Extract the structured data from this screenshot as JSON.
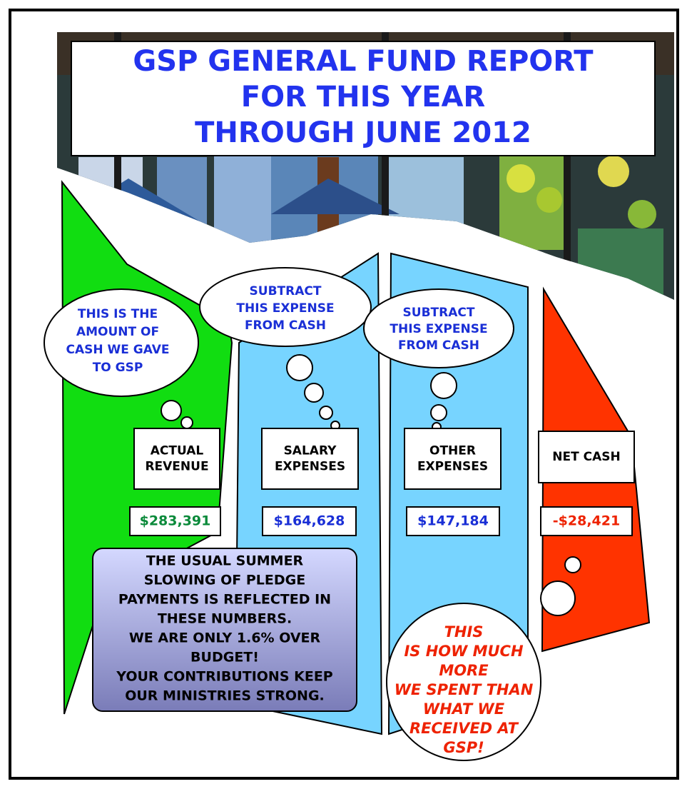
{
  "title": [
    "GSP GENERAL FUND REPORT",
    "FOR THIS YEAR",
    "THROUGH JUNE 2012"
  ],
  "panels": [
    {
      "label": [
        "ACTUAL",
        "REVENUE"
      ],
      "amount": "$283,391",
      "color": "#0a8a3a"
    },
    {
      "label": [
        "SALARY",
        "EXPENSES"
      ],
      "amount": "$164,628",
      "color": "#1a2fd6"
    },
    {
      "label": [
        "OTHER",
        "EXPENSES"
      ],
      "amount": "$147,184",
      "color": "#1a2fd6"
    },
    {
      "label": [
        "NET CASH"
      ],
      "amount": "-$28,421",
      "color": "#ee2200"
    }
  ],
  "bubbles": {
    "revenue": [
      "THIS IS THE",
      "AMOUNT OF",
      "CASH WE GAVE",
      "TO GSP"
    ],
    "salary": [
      "SUBTRACT",
      "THIS EXPENSE",
      "FROM CASH"
    ],
    "other": [
      "SUBTRACT",
      "THIS EXPENSE",
      "FROM CASH"
    ],
    "net": [
      "THIS",
      "IS HOW MUCH",
      "MORE",
      "WE SPENT THAN",
      "WHAT WE",
      "RECEIVED AT",
      "GSP!"
    ]
  },
  "note": [
    "THE USUAL SUMMER",
    "SLOWING OF PLEDGE",
    "PAYMENTS IS REFLECTED IN",
    "THESE NUMBERS.",
    "WE ARE ONLY 1.6% OVER",
    "BUDGET!",
    "YOUR CONTRIBUTIONS KEEP",
    "OUR MINISTRIES STRONG."
  ]
}
